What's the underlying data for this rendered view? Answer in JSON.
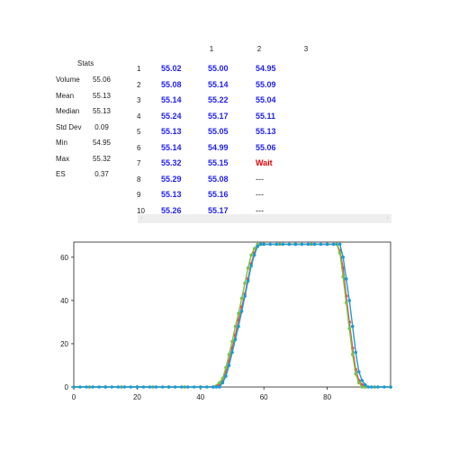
{
  "stats": {
    "title": "Stats",
    "rows": [
      {
        "label": "Volume",
        "value": "55.06"
      },
      {
        "label": "Mean",
        "value": "55.13"
      },
      {
        "label": "Median",
        "value": "55.13"
      },
      {
        "label": "Std Dev",
        "value": "0.09"
      },
      {
        "label": "Min",
        "value": "54.95"
      },
      {
        "label": "Max",
        "value": "55.32"
      },
      {
        "label": "ES",
        "value": "0.37"
      }
    ]
  },
  "grid": {
    "columns": [
      "1",
      "2",
      "3"
    ],
    "rows": [
      {
        "index": "1",
        "c1": "55.02",
        "c2": "55.00",
        "c3": "54.95"
      },
      {
        "index": "2",
        "c1": "55.08",
        "c2": "55.14",
        "c3": "55.09"
      },
      {
        "index": "3",
        "c1": "55.14",
        "c2": "55.22",
        "c3": "55.04"
      },
      {
        "index": "4",
        "c1": "55.24",
        "c2": "55.17",
        "c3": "55.11"
      },
      {
        "index": "5",
        "c1": "55.13",
        "c2": "55.05",
        "c3": "55.13"
      },
      {
        "index": "6",
        "c1": "55.14",
        "c2": "54.99",
        "c3": "55.06"
      },
      {
        "index": "7",
        "c1": "55.32",
        "c2": "55.15",
        "c3": "Wait"
      },
      {
        "index": "8",
        "c1": "55.29",
        "c2": "55.08",
        "c3": "---"
      },
      {
        "index": "9",
        "c1": "55.13",
        "c2": "55.16",
        "c3": "---"
      },
      {
        "index": "10",
        "c1": "55.26",
        "c2": "55.17",
        "c3": "---"
      }
    ],
    "scroll_left": "‹",
    "scroll_right": "›"
  },
  "chart_data": {
    "type": "line",
    "xlim": [
      0,
      100
    ],
    "ylim": [
      0,
      67
    ],
    "xticks": [
      0,
      20,
      40,
      60,
      80
    ],
    "yticks": [
      0,
      20,
      40,
      60
    ],
    "grid": false,
    "colors": {
      "series_a": "#e05050",
      "series_b": "#7cc040",
      "series_c": "#1e9ad6"
    },
    "series": [
      {
        "color_key": "series_a",
        "x": [
          0,
          5,
          10,
          15,
          20,
          25,
          30,
          35,
          40,
          44,
          46,
          47,
          48,
          49,
          50,
          51,
          52,
          53,
          54,
          55,
          56,
          57,
          58,
          59,
          60,
          65,
          70,
          75,
          80,
          83,
          84,
          85,
          86,
          87,
          88,
          89,
          90,
          91,
          92,
          95,
          100
        ],
        "y": [
          0,
          0,
          0,
          0,
          0,
          0,
          0,
          0,
          0,
          0,
          1,
          3,
          7,
          12,
          18,
          24,
          31,
          37,
          43,
          50,
          57,
          62,
          65,
          66,
          66,
          66,
          66,
          66,
          66,
          66,
          63,
          55,
          42,
          30,
          18,
          8,
          3,
          1,
          0,
          0,
          0
        ]
      },
      {
        "color_key": "series_b",
        "x": [
          0,
          5,
          10,
          15,
          20,
          25,
          30,
          35,
          40,
          44,
          46,
          47,
          48,
          49,
          50,
          51,
          52,
          53,
          54,
          55,
          56,
          57,
          58,
          59,
          60,
          65,
          70,
          75,
          80,
          83,
          84,
          85,
          86,
          87,
          88,
          89,
          90,
          91,
          92,
          95,
          100
        ],
        "y": [
          0,
          0,
          0,
          0,
          0,
          0,
          0,
          0,
          0,
          0,
          2,
          4,
          9,
          15,
          21,
          28,
          34,
          41,
          48,
          55,
          61,
          64,
          66,
          66,
          66,
          66,
          66,
          66,
          66,
          66,
          62,
          51,
          39,
          27,
          15,
          6,
          2,
          0,
          0,
          0,
          0
        ]
      },
      {
        "color_key": "series_c",
        "x": [
          0,
          2,
          4,
          6,
          8,
          10,
          12,
          14,
          16,
          18,
          20,
          22,
          24,
          26,
          28,
          30,
          32,
          34,
          36,
          38,
          40,
          42,
          44,
          45,
          46,
          47,
          48,
          49,
          50,
          51,
          52,
          53,
          54,
          55,
          56,
          57,
          58,
          59,
          60,
          62,
          64,
          66,
          68,
          70,
          72,
          74,
          76,
          78,
          80,
          82,
          84,
          85,
          86,
          87,
          88,
          89,
          90,
          91,
          92,
          93,
          94,
          96,
          98,
          100
        ],
        "y": [
          0,
          0,
          0,
          0,
          0,
          0,
          0,
          0,
          0,
          0,
          0,
          0,
          0,
          0,
          0,
          0,
          0,
          0,
          0,
          0,
          0,
          0,
          0,
          0,
          0,
          2,
          5,
          10,
          16,
          22,
          28,
          35,
          42,
          49,
          56,
          61,
          65,
          66,
          66,
          66,
          66,
          66,
          66,
          66,
          66,
          66,
          66,
          66,
          66,
          66,
          66,
          60,
          50,
          40,
          28,
          16,
          7,
          3,
          1,
          0,
          0,
          0,
          0,
          0
        ]
      }
    ]
  }
}
